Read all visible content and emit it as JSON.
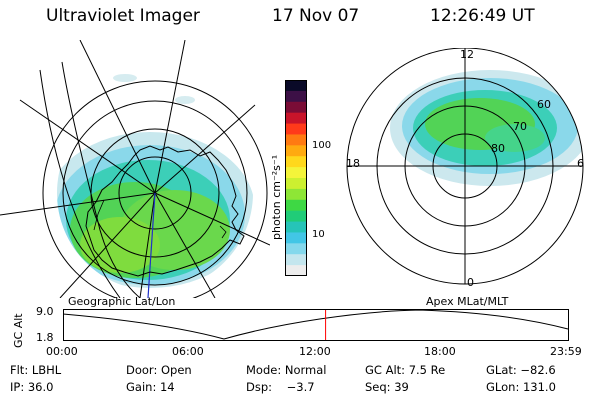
{
  "header": {
    "instrument": "Ultraviolet Imager",
    "date": "17 Nov 07",
    "time": "12:26:49 UT"
  },
  "colorbar": {
    "unit_label": "photon cm⁻²s⁻¹",
    "ticks": [
      "100",
      "10"
    ],
    "colors": [
      "#0a0a28",
      "#3c1046",
      "#7a0c36",
      "#c8142a",
      "#ff3a1a",
      "#ff7a12",
      "#ffaa10",
      "#ffd81c",
      "#f4f43a",
      "#ccf030",
      "#8ee636",
      "#3ed844",
      "#20cc78",
      "#26c4b8",
      "#42c6e6",
      "#84d8ec",
      "#c4e6ee",
      "#ededed"
    ]
  },
  "maps": {
    "left_caption": "Geographic Lat/Lon",
    "right_caption": "Apex MLat/MLT",
    "right_mlt_labels": {
      "top": "12",
      "left": "18",
      "right": "6",
      "bottom": "0"
    },
    "right_lat_labels": [
      "60",
      "70",
      "80"
    ]
  },
  "altitude_plot": {
    "ylabel": "GC Alt",
    "yticks": [
      "9.0",
      "1.8"
    ],
    "xticks": [
      "00:00",
      "06:00",
      "12:00",
      "18:00",
      "23:59"
    ],
    "marker_time": "12:26:49",
    "marker_color": "#ff0000"
  },
  "info": {
    "filter": "Flt: LBHL",
    "door": "Door: Open",
    "mode": "Mode: Normal",
    "gc_alt": "GC Alt: 7.5 Re",
    "glat": "GLat: −82.6",
    "ip": "IP: 36.0",
    "gain": "Gain: 14",
    "dsp": "Dsp:    −3.7",
    "seq": "Seq: 39",
    "glon": "GLon: 131.0"
  }
}
